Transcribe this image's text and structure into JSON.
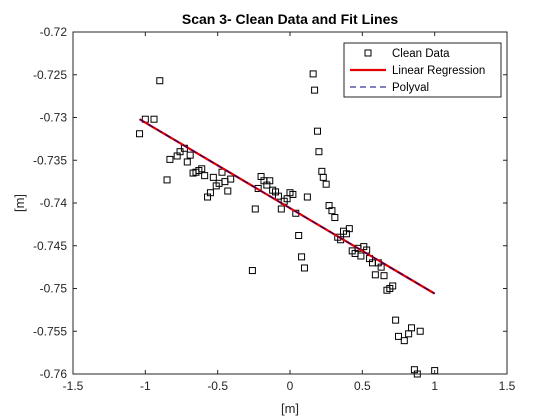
{
  "chart_data": {
    "type": "scatter",
    "title": "Scan 3- Clean Data and Fit Lines",
    "xlabel": "[m]",
    "ylabel": "[m]",
    "xlim": [
      -1.5,
      1.5
    ],
    "ylim": [
      -0.76,
      -0.72
    ],
    "xticks": [
      -1.5,
      -1,
      -0.5,
      0,
      0.5,
      1,
      1.5
    ],
    "xtick_labels": [
      "-1.5",
      "-1",
      "-0.5",
      "0",
      "0.5",
      "1",
      "1.5"
    ],
    "yticks": [
      -0.76,
      -0.755,
      -0.75,
      -0.745,
      -0.74,
      -0.735,
      -0.73,
      -0.725,
      -0.72
    ],
    "ytick_labels": [
      "-0.76",
      "-0.755",
      "-0.75",
      "-0.745",
      "-0.74",
      "-0.735",
      "-0.73",
      "-0.725",
      "-0.72"
    ],
    "grid": false,
    "legend_position": "top-right",
    "series": [
      {
        "name": "Clean Data",
        "kind": "marker-square",
        "color": "#000000",
        "x": [
          -1.04,
          -1.0,
          -0.94,
          -0.9,
          -0.85,
          -0.83,
          -0.78,
          -0.76,
          -0.73,
          -0.71,
          -0.69,
          -0.67,
          -0.65,
          -0.63,
          -0.61,
          -0.59,
          -0.57,
          -0.55,
          -0.53,
          -0.51,
          -0.49,
          -0.47,
          -0.45,
          -0.43,
          -0.41,
          -0.26,
          -0.24,
          -0.22,
          -0.2,
          -0.18,
          -0.16,
          -0.14,
          -0.12,
          -0.1,
          -0.08,
          -0.06,
          -0.04,
          -0.02,
          0.0,
          0.02,
          0.04,
          0.06,
          0.08,
          0.1,
          0.12,
          0.16,
          0.17,
          0.19,
          0.2,
          0.22,
          0.23,
          0.25,
          0.27,
          0.29,
          0.31,
          0.33,
          0.35,
          0.37,
          0.39,
          0.41,
          0.43,
          0.45,
          0.47,
          0.49,
          0.51,
          0.53,
          0.55,
          0.57,
          0.59,
          0.61,
          0.63,
          0.65,
          0.67,
          0.69,
          0.71,
          0.73,
          0.75,
          0.79,
          0.82,
          0.84,
          0.86,
          0.88,
          0.9,
          1.0
        ],
        "y": [
          -0.7319,
          -0.7302,
          -0.7302,
          -0.7257,
          -0.7373,
          -0.7349,
          -0.7345,
          -0.734,
          -0.7336,
          -0.7352,
          -0.7344,
          -0.7365,
          -0.7364,
          -0.7362,
          -0.736,
          -0.7368,
          -0.7393,
          -0.7388,
          -0.737,
          -0.738,
          -0.7377,
          -0.7364,
          -0.7375,
          -0.7386,
          -0.7372,
          -0.7479,
          -0.7407,
          -0.7383,
          -0.7369,
          -0.7374,
          -0.7379,
          -0.7374,
          -0.7385,
          -0.7387,
          -0.7392,
          -0.7407,
          -0.7398,
          -0.7395,
          -0.7388,
          -0.739,
          -0.7412,
          -0.7438,
          -0.7463,
          -0.7476,
          -0.7393,
          -0.7249,
          -0.7268,
          -0.7316,
          -0.734,
          -0.7363,
          -0.737,
          -0.7378,
          -0.7403,
          -0.7409,
          -0.7417,
          -0.744,
          -0.7443,
          -0.7433,
          -0.7436,
          -0.743,
          -0.7456,
          -0.7459,
          -0.7453,
          -0.7462,
          -0.7451,
          -0.7455,
          -0.7465,
          -0.747,
          -0.7484,
          -0.747,
          -0.7475,
          -0.7485,
          -0.7502,
          -0.75,
          -0.7497,
          -0.7537,
          -0.7556,
          -0.7561,
          -0.7553,
          -0.7546,
          -0.7595,
          -0.76,
          -0.755,
          -0.7596
        ]
      },
      {
        "name": "Linear Regression",
        "kind": "line-solid",
        "color": "#e50000",
        "x": [
          -1.04,
          1.0
        ],
        "y": [
          -0.7302,
          -0.7506
        ]
      },
      {
        "name": "Polyval",
        "kind": "line-dashed",
        "color": "#000080",
        "x": [
          -1.04,
          1.0
        ],
        "y": [
          -0.7302,
          -0.7506
        ]
      }
    ]
  }
}
